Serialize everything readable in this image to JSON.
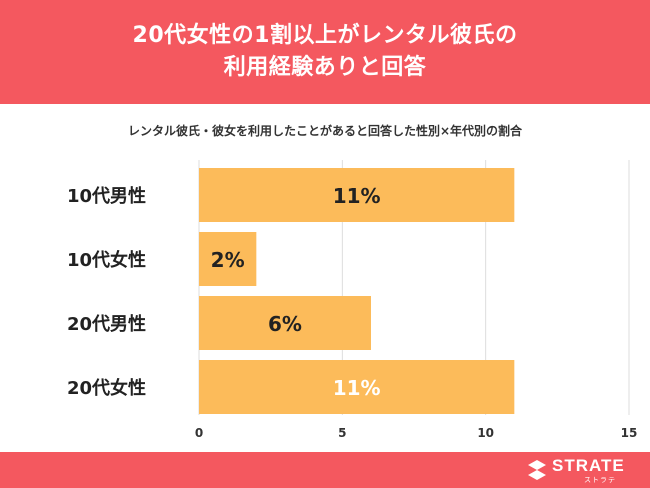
{
  "header": {
    "title_line1": "20代女性の1割以上がレンタル彼氏の",
    "title_line2": "利用経験ありと回答"
  },
  "chart_data": {
    "type": "bar",
    "orientation": "horizontal",
    "title": "レンタル彼氏・彼女を利用したことがあると回答した性別×年代別の割合",
    "categories": [
      "10代男性",
      "10代女性",
      "20代男性",
      "20代女性"
    ],
    "values": [
      11,
      2,
      6,
      11
    ],
    "value_labels": [
      "11%",
      "2%",
      "6%",
      "11%"
    ],
    "xlim": [
      0,
      15
    ],
    "x_ticks": [
      0,
      5,
      10,
      15
    ],
    "grid": true,
    "bar_color": "#fcbb5a",
    "label_colors": [
      "#222222",
      "#222222",
      "#222222",
      "#ffffff"
    ]
  },
  "footer": {
    "brand": "STRATE",
    "brand_sub": "ストラテ",
    "color": "#f4585f"
  }
}
